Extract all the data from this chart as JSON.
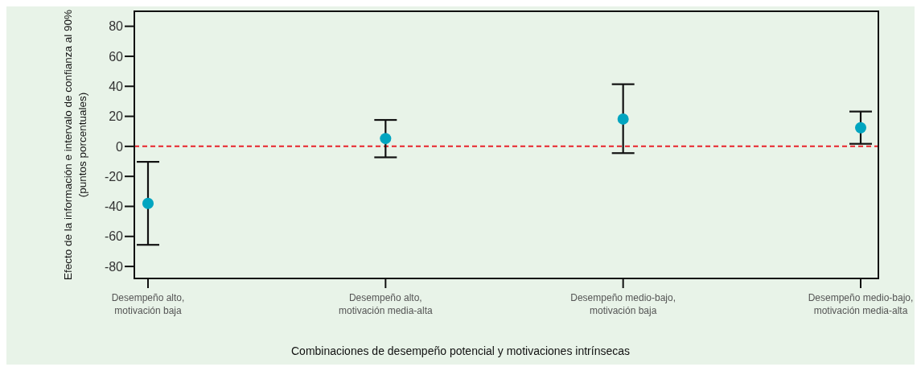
{
  "chart_data": {
    "type": "scatter",
    "xlabel": "Combinaciones de desempeño potencial y motivaciones intrínsecas",
    "ylabel": "Efecto de la información e intervalo de confianza al 90% (puntos porcentuales)",
    "categories": [
      "Desempeño alto, motivación baja",
      "Desempeño alto, motivación media-alta",
      "Desempeño medio-bajo, motivación baja",
      "Desempeño medio-bajo, motivación media-alta"
    ],
    "values": [
      -38,
      5.2,
      18.2,
      12.4
    ],
    "errors": [
      [
        -65.6,
        -10.3
      ],
      [
        -7.3,
        17.6
      ],
      [
        -4.5,
        41.4
      ],
      [
        1.7,
        23.2
      ]
    ],
    "color": "#00a5c0",
    "marker": "circle",
    "ylim": [
      -88,
      90
    ],
    "yticks": [
      -80,
      -60,
      -40,
      -20,
      0,
      20,
      40,
      60,
      80
    ],
    "ref_lines": [
      {
        "axis": "y",
        "value": 0,
        "color": "#e8232a",
        "line_style": "dashed"
      }
    ],
    "grid": false,
    "legend": false
  }
}
